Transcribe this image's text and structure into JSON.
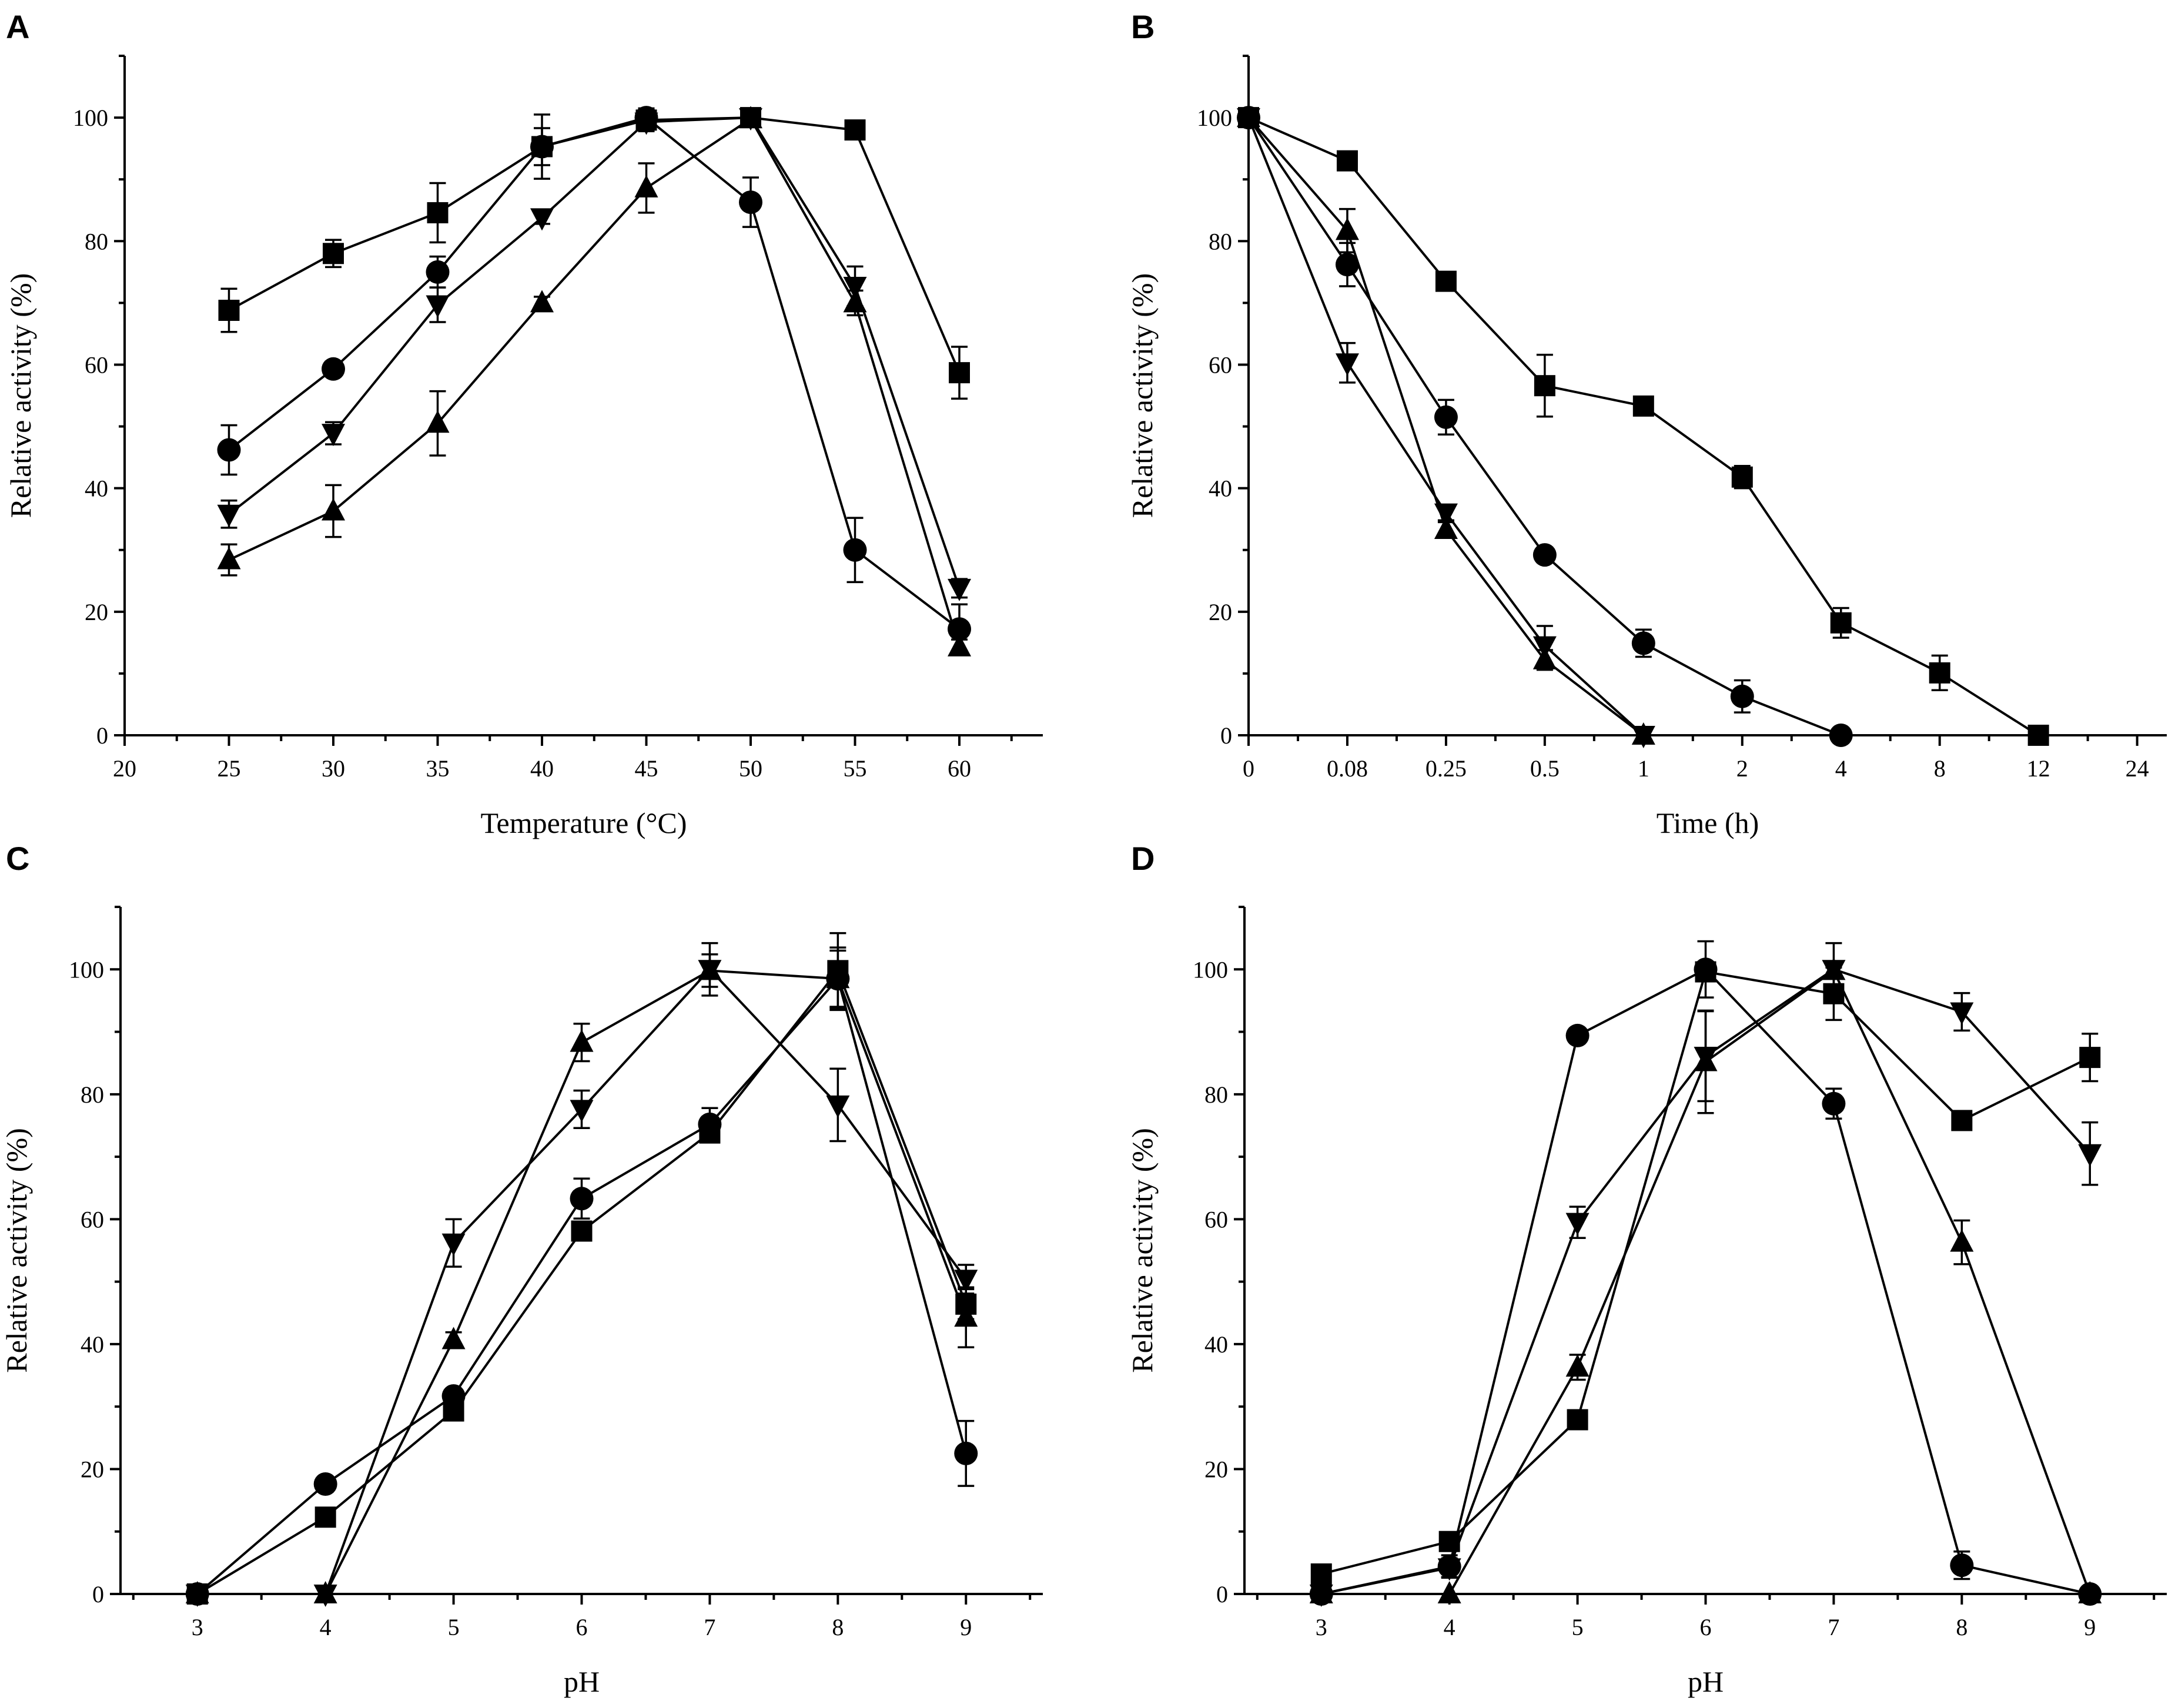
{
  "chart_data": [
    {
      "panel": "A",
      "type": "line",
      "xlabel": "Temperature (°C)",
      "ylabel": "Relative activity (%)",
      "xlim": [
        20,
        64
      ],
      "ylim": [
        0,
        110
      ],
      "xticks": [
        20,
        25,
        30,
        35,
        40,
        45,
        50,
        55,
        60
      ],
      "yticks": [
        0,
        20,
        40,
        60,
        80,
        100
      ],
      "x": [
        25,
        30,
        35,
        40,
        45,
        50,
        55,
        60
      ],
      "series": [
        {
          "name": "square",
          "marker": "square",
          "values": [
            68.8,
            78,
            84.6,
            95.3,
            99.6,
            100,
            98,
            58.7
          ],
          "errors": [
            3.5,
            2.2,
            4.8,
            5.2,
            1.5,
            1.3,
            0.8,
            4.2
          ]
        },
        {
          "name": "circle",
          "marker": "circle",
          "values": [
            46.2,
            59.3,
            75,
            95.3,
            100,
            86.3,
            30,
            17.2
          ],
          "errors": [
            4,
            0.8,
            2.5,
            3,
            1.5,
            4,
            5.2,
            4
          ]
        },
        {
          "name": "triangle-down",
          "marker": "triangle-down",
          "values": [
            35.8,
            48.9,
            69.7,
            83.8,
            99.3,
            100,
            72.7,
            23.8
          ],
          "errors": [
            2.2,
            1.8,
            2.8,
            1,
            1.5,
            1.2,
            3.2,
            1.5
          ]
        },
        {
          "name": "triangle-up",
          "marker": "triangle-up",
          "values": [
            28.4,
            36.3,
            50.5,
            70,
            88.6,
            99.8,
            70,
            14.3
          ],
          "errors": [
            2.5,
            4.2,
            5.2,
            1,
            4,
            1.3,
            2,
            1.2
          ]
        }
      ]
    },
    {
      "panel": "B",
      "type": "line",
      "xlabel": "Time (h)",
      "ylabel": "Relative activity (%)",
      "xlim": [
        0,
        9.3
      ],
      "ylim": [
        0,
        110
      ],
      "x_categories": [
        "0",
        "0.08",
        "0.25",
        "0.5",
        "1",
        "2",
        "4",
        "8",
        "12",
        "24"
      ],
      "yticks": [
        0,
        20,
        40,
        60,
        80,
        100
      ],
      "series": [
        {
          "name": "square",
          "marker": "square",
          "x_index": [
            0,
            1,
            2,
            3,
            4,
            5,
            6,
            7,
            8
          ],
          "values": [
            100,
            93,
            73.5,
            56.6,
            53.3,
            41.8,
            18.2,
            10.1,
            0
          ],
          "errors": [
            0.8,
            0.8,
            0.8,
            5,
            0.8,
            1.8,
            2.4,
            2.8,
            0
          ]
        },
        {
          "name": "circle",
          "marker": "circle",
          "x_index": [
            0,
            1,
            2,
            3,
            4,
            5,
            6
          ],
          "values": [
            100,
            76.2,
            51.5,
            29.2,
            14.9,
            6.3,
            0
          ],
          "errors": [
            0.8,
            3.5,
            2.8,
            1.2,
            2.2,
            2.6,
            0
          ]
        },
        {
          "name": "triangle-down",
          "marker": "triangle-down",
          "x_index": [
            0,
            1,
            2,
            3,
            4
          ],
          "values": [
            100,
            60.3,
            36,
            14.5,
            0
          ],
          "errors": [
            0.8,
            3.2,
            1.2,
            3.2,
            0
          ]
        },
        {
          "name": "triangle-up",
          "marker": "triangle-up",
          "x_index": [
            0,
            1,
            2,
            3,
            4
          ],
          "values": [
            100,
            81.7,
            33.3,
            12.2,
            0
          ],
          "errors": [
            0.8,
            3.5,
            1.2,
            1.6,
            0
          ]
        }
      ]
    },
    {
      "panel": "C",
      "type": "line",
      "xlabel": "pH",
      "ylabel": "Relative activity (%)",
      "xlim": [
        2.4,
        9.6
      ],
      "ylim": [
        0,
        110
      ],
      "xticks": [
        3,
        4,
        5,
        6,
        7,
        8,
        9
      ],
      "yticks": [
        0,
        20,
        40,
        60,
        80,
        100
      ],
      "x": [
        3,
        4,
        5,
        6,
        7,
        8,
        9
      ],
      "series": [
        {
          "name": "square",
          "marker": "square",
          "values": [
            0,
            12.3,
            29.3,
            58.1,
            73.8,
            99.8,
            46.4
          ],
          "errors": [
            0,
            0.5,
            0.5,
            0.5,
            0.5,
            6,
            2.4
          ]
        },
        {
          "name": "circle",
          "marker": "circle",
          "values": [
            0,
            17.6,
            31.7,
            63.3,
            75.2,
            98.5,
            22.5
          ],
          "errors": [
            0,
            0.5,
            0.5,
            3.2,
            2.6,
            4.5,
            5.2
          ]
        },
        {
          "name": "triangle-down",
          "marker": "triangle-down",
          "values": [
            0,
            0,
            56.2,
            77.6,
            100,
            78.3,
            50.4
          ],
          "errors": [
            0,
            0,
            3.8,
            3,
            4.2,
            5.8,
            2.3
          ]
        },
        {
          "name": "triangle-up",
          "marker": "triangle-up",
          "values": [
            0,
            0,
            40.7,
            88.3,
            99.8,
            98.5,
            44.3
          ],
          "errors": [
            0,
            0,
            1.2,
            3,
            2.6,
            5,
            4.8
          ]
        }
      ]
    },
    {
      "panel": "D",
      "type": "line",
      "xlabel": "pH",
      "ylabel": "Relative activity (%)",
      "xlim": [
        2.4,
        9.6
      ],
      "ylim": [
        0,
        110
      ],
      "xticks": [
        3,
        4,
        5,
        6,
        7,
        8,
        9
      ],
      "yticks": [
        0,
        20,
        40,
        60,
        80,
        100
      ],
      "x": [
        3,
        4,
        5,
        6,
        7,
        8,
        9
      ],
      "series": [
        {
          "name": "square",
          "marker": "square",
          "values": [
            3.2,
            8.4,
            27.9,
            99.6,
            96.1,
            75.8,
            85.9
          ],
          "errors": [
            0.5,
            0.5,
            0.5,
            1,
            4.2,
            0.8,
            3.8
          ]
        },
        {
          "name": "circle",
          "marker": "circle",
          "values": [
            0,
            4.4,
            89.4,
            100,
            78.5,
            4.6,
            0
          ],
          "errors": [
            0,
            1.8,
            0.5,
            4.5,
            2.4,
            2.2,
            0
          ]
        },
        {
          "name": "triangle-down",
          "marker": "triangle-down",
          "values": [
            0,
            4.2,
            59.5,
            86.1,
            100,
            93.2,
            70.5
          ],
          "errors": [
            0,
            1.5,
            2.5,
            7.2,
            4.2,
            3,
            5
          ]
        },
        {
          "name": "triangle-up",
          "marker": "triangle-up",
          "values": [
            0,
            0,
            36.3,
            85.2,
            99.8,
            56.3,
            0
          ],
          "errors": [
            0,
            0,
            2,
            8.2,
            1.2,
            3.5,
            0
          ]
        }
      ]
    }
  ]
}
